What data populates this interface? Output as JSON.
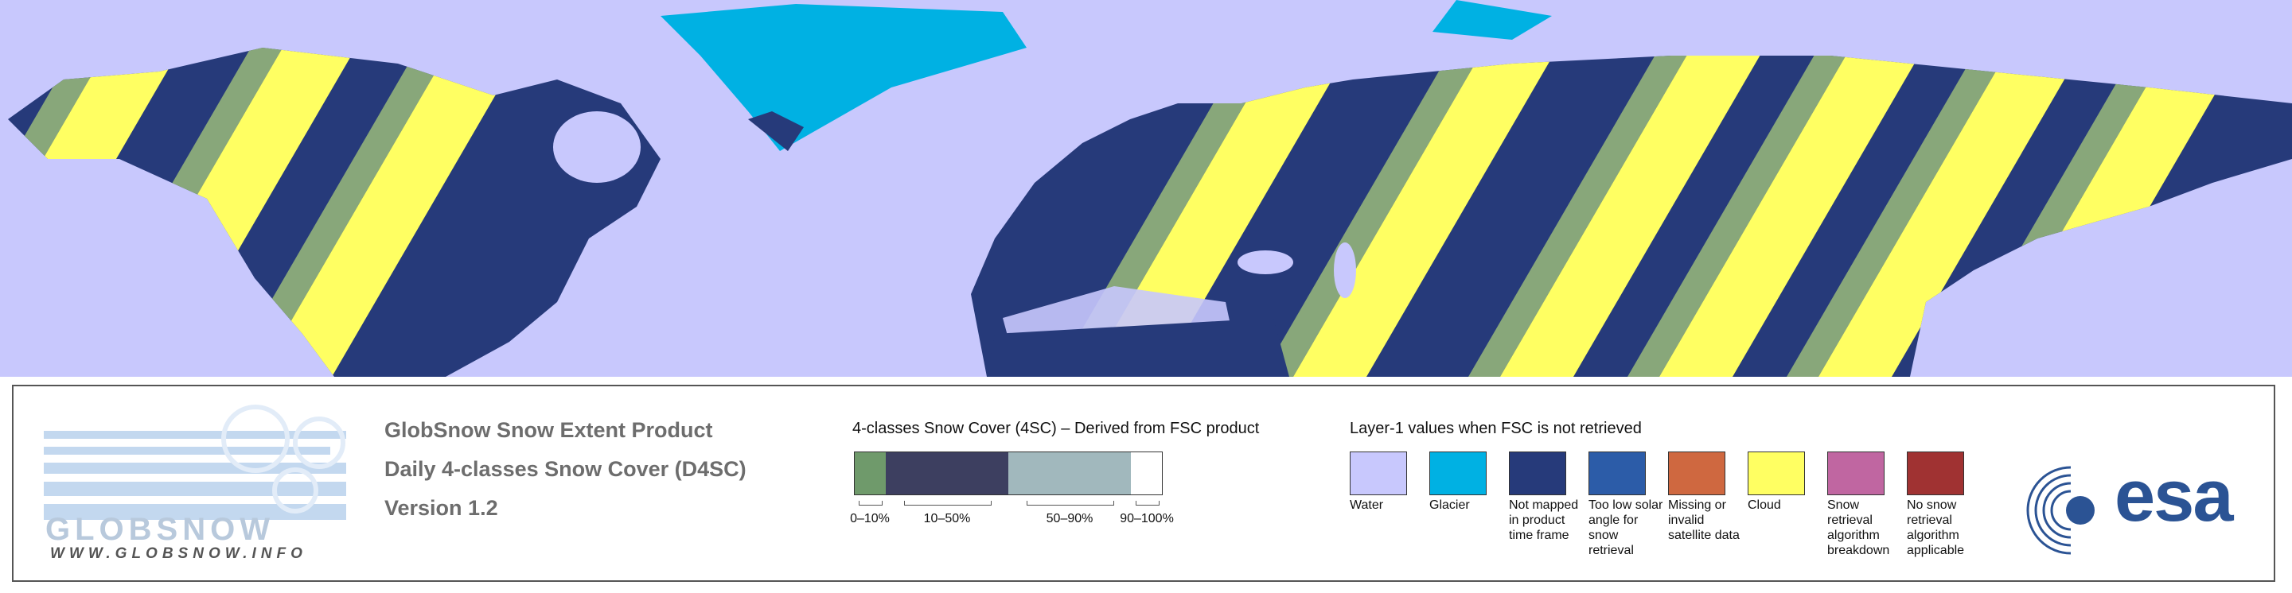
{
  "header": {
    "title": "GlobSnow Snow Extent Product",
    "subtitle": "Daily 4-classes Snow Cover (D4SC)",
    "version": "Version 1.2"
  },
  "logo": {
    "name": "GLOBSNOW",
    "url": "WWW.GLOBSNOW.INFO"
  },
  "snow_cover_legend": {
    "title": "4-classes Snow Cover (4SC) – Derived from FSC product",
    "classes": [
      {
        "label": "0–10%",
        "color": "#6f9a6b"
      },
      {
        "label": "10–50%",
        "color": "#3d3f60"
      },
      {
        "label": "50–90%",
        "color": "#a1b8bd"
      },
      {
        "label": "90–100%",
        "color": "#ffffff"
      }
    ]
  },
  "layer1_legend": {
    "title": "Layer-1 values when FSC is not retrieved",
    "items": [
      {
        "label": "Water",
        "color": "#c8c8fd"
      },
      {
        "label": "Glacier",
        "color": "#00b1e3"
      },
      {
        "label": "Not mapped in product time frame",
        "color": "#263a7a"
      },
      {
        "label": "Too low solar angle for snow retrieval",
        "color": "#2c5ca8"
      },
      {
        "label": "Missing or invalid satellite data",
        "color": "#cf6840"
      },
      {
        "label": "Cloud",
        "color": "#ffff62"
      },
      {
        "label": "Snow retrieval algorithm breakdown",
        "color": "#c066a1"
      },
      {
        "label": "No snow retrieval algorithm applicable",
        "color": "#a03232"
      }
    ]
  },
  "agency_logo": {
    "name": "esa"
  }
}
